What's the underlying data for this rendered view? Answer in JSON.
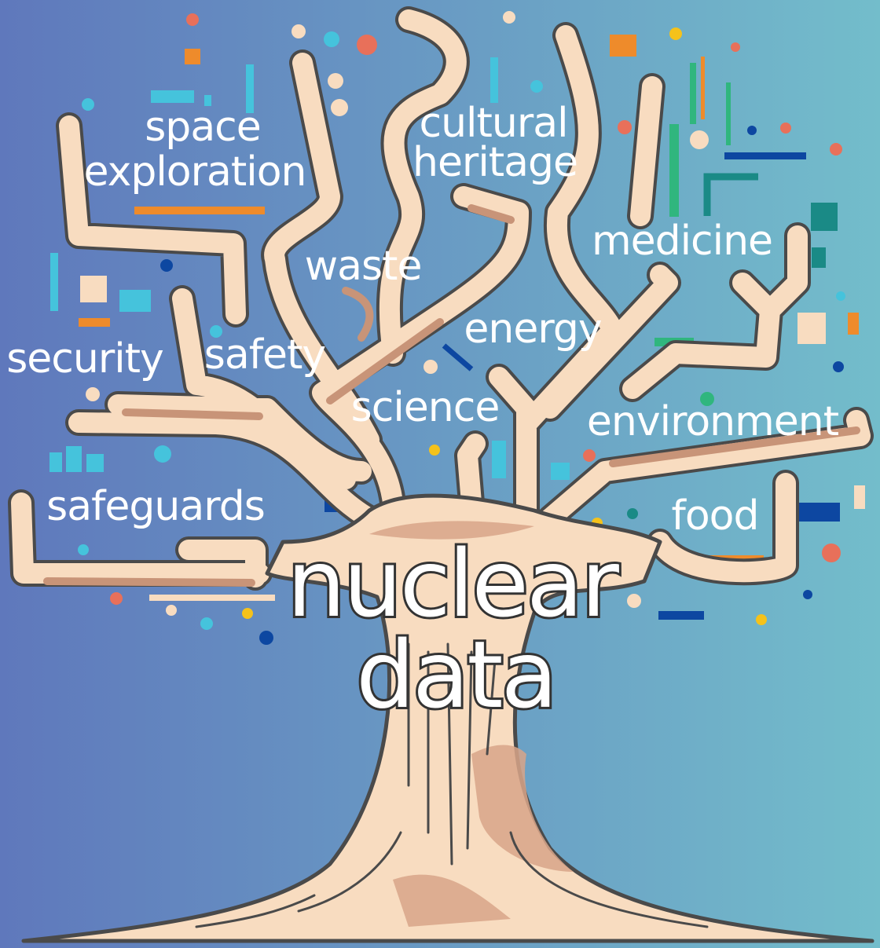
{
  "center": {
    "lines": [
      "nuclear",
      "data"
    ]
  },
  "branches": [
    {
      "lines": [
        "space",
        "exploration"
      ]
    },
    {
      "lines": [
        "cultural",
        "heritage"
      ]
    },
    {
      "lines": [
        "waste"
      ]
    },
    {
      "lines": [
        "medicine"
      ]
    },
    {
      "lines": [
        "energy"
      ]
    },
    {
      "lines": [
        "security"
      ]
    },
    {
      "lines": [
        "safety"
      ]
    },
    {
      "lines": [
        "science"
      ]
    },
    {
      "lines": [
        "environment"
      ]
    },
    {
      "lines": [
        "safeguards"
      ]
    },
    {
      "lines": [
        "food"
      ]
    }
  ]
}
